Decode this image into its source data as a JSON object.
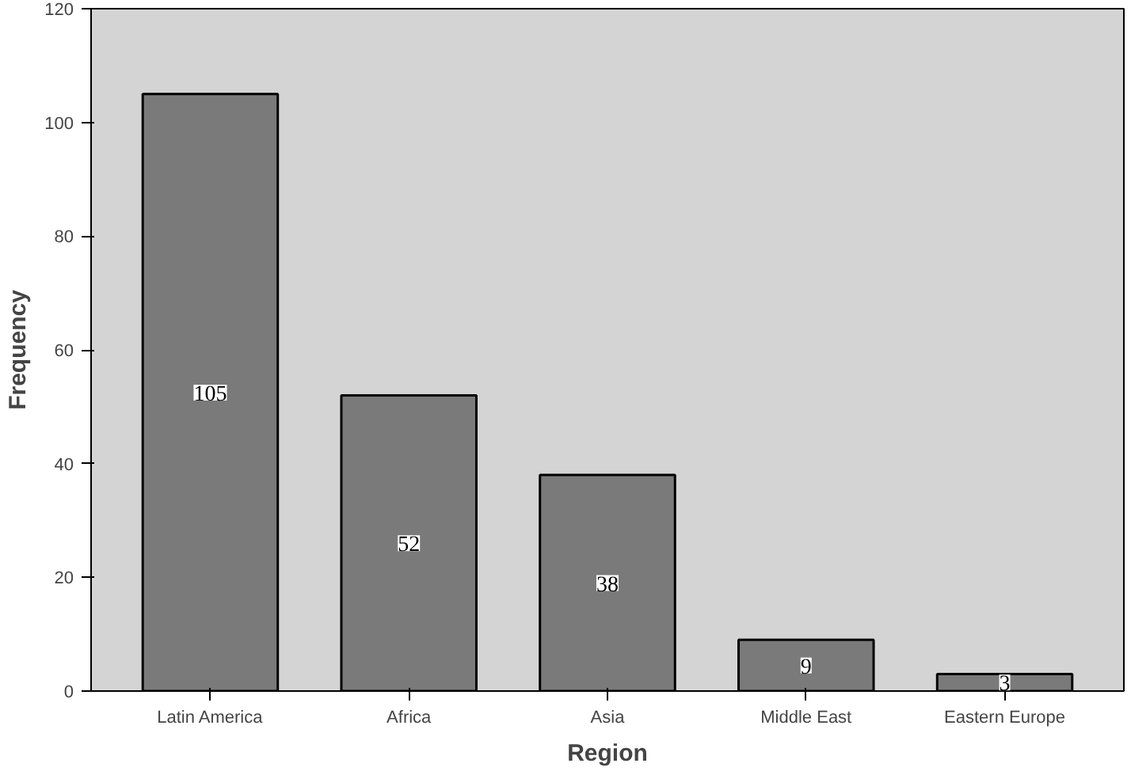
{
  "chart_data": {
    "type": "bar",
    "xlabel": "Region",
    "ylabel": "Frequency",
    "categories": [
      "Latin America",
      "Africa",
      "Asia",
      "Middle East",
      "Eastern Europe"
    ],
    "values": [
      105,
      52,
      38,
      9,
      3
    ],
    "color": "#7a7a7a",
    "data_labels": true,
    "ylim": [
      0,
      120
    ],
    "yticks": [
      0,
      20,
      40,
      60,
      80,
      100,
      120
    ],
    "grid": false
  }
}
